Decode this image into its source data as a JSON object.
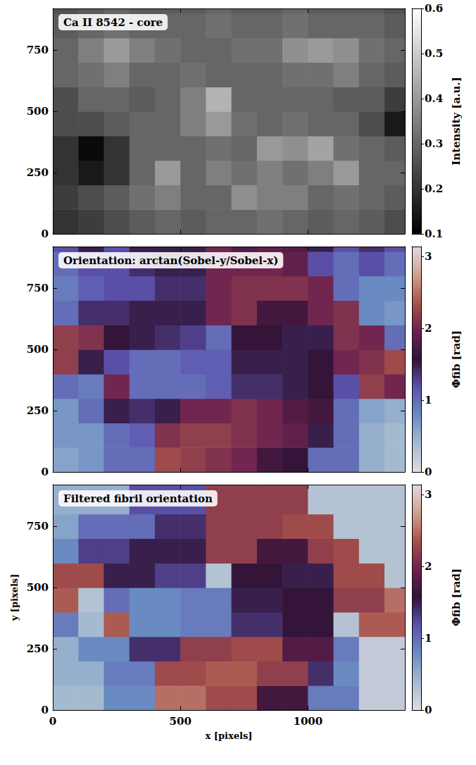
{
  "chart_data": [
    {
      "type": "heatmap",
      "title": "Ca II 8542 - core",
      "tick_labels": "y",
      "color": "gray",
      "xlim": [
        0,
        1380
      ],
      "ylim": [
        0,
        920
      ],
      "xticks": [
        0,
        500,
        1000
      ],
      "yticks": [
        0,
        250,
        500,
        750
      ],
      "x_edges": [
        0,
        100,
        200,
        300,
        400,
        500,
        600,
        700,
        800,
        900,
        1000,
        1100,
        1200,
        1300,
        1380
      ],
      "y_edges": [
        0,
        100,
        200,
        300,
        400,
        500,
        600,
        700,
        800,
        900,
        920
      ],
      "cells": [
        [
          0.2,
          0.22,
          0.25,
          0.28,
          0.3,
          0.28,
          0.3,
          0.3,
          0.32,
          0.3,
          0.28,
          0.3,
          0.28,
          0.25
        ],
        [
          0.22,
          0.25,
          0.28,
          0.32,
          0.35,
          0.3,
          0.3,
          0.38,
          0.35,
          0.35,
          0.3,
          0.32,
          0.3,
          0.28
        ],
        [
          0.2,
          0.15,
          0.2,
          0.3,
          0.4,
          0.3,
          0.35,
          0.32,
          0.35,
          0.32,
          0.35,
          0.4,
          0.3,
          0.3
        ],
        [
          0.2,
          0.12,
          0.2,
          0.3,
          0.3,
          0.3,
          0.32,
          0.3,
          0.4,
          0.38,
          0.42,
          0.32,
          0.3,
          0.28
        ],
        [
          0.25,
          0.25,
          0.28,
          0.3,
          0.3,
          0.35,
          0.4,
          0.32,
          0.3,
          0.32,
          0.3,
          0.3,
          0.25,
          0.15
        ],
        [
          0.25,
          0.3,
          0.3,
          0.28,
          0.3,
          0.35,
          0.45,
          0.3,
          0.3,
          0.3,
          0.3,
          0.28,
          0.28,
          0.22
        ],
        [
          0.3,
          0.32,
          0.35,
          0.3,
          0.3,
          0.32,
          0.3,
          0.3,
          0.3,
          0.32,
          0.32,
          0.35,
          0.3,
          0.28
        ],
        [
          0.3,
          0.35,
          0.4,
          0.35,
          0.32,
          0.3,
          0.3,
          0.32,
          0.32,
          0.38,
          0.4,
          0.38,
          0.32,
          0.3
        ],
        [
          0.28,
          0.3,
          0.32,
          0.3,
          0.3,
          0.3,
          0.32,
          0.3,
          0.3,
          0.32,
          0.3,
          0.3,
          0.3,
          0.28
        ],
        [
          0.26,
          0.28,
          0.3,
          0.28,
          0.28,
          0.28,
          0.3,
          0.28,
          0.28,
          0.3,
          0.28,
          0.28,
          0.28,
          0.26
        ]
      ],
      "colorbar": {
        "label": "Intensity [a.u.]",
        "range": [
          0.1,
          0.6
        ],
        "ticks": [
          0.1,
          0.2,
          0.3,
          0.4,
          0.5,
          0.6
        ]
      }
    },
    {
      "type": "heatmap",
      "title": "Orientation: arctan(Sobel-y/Sobel-x)",
      "tick_labels": "y",
      "color": "twilight",
      "xlim": [
        0,
        1380
      ],
      "ylim": [
        0,
        920
      ],
      "xticks": [
        0,
        500,
        1000
      ],
      "yticks": [
        0,
        250,
        500,
        750
      ],
      "x_edges": [
        0,
        100,
        200,
        300,
        400,
        500,
        600,
        700,
        800,
        900,
        1000,
        1100,
        1200,
        1300,
        1380
      ],
      "y_edges": [
        0,
        100,
        200,
        300,
        400,
        500,
        600,
        700,
        800,
        900,
        920
      ],
      "cells": [
        [
          0.6,
          0.7,
          1.0,
          1.0,
          2.3,
          2.2,
          2.1,
          2.0,
          1.7,
          1.6,
          1.0,
          1.0,
          0.5,
          0.4
        ],
        [
          0.7,
          0.7,
          1.0,
          1.1,
          2.1,
          2.2,
          2.2,
          2.1,
          2.0,
          1.9,
          1.5,
          1.0,
          0.5,
          0.4
        ],
        [
          0.7,
          1.0,
          1.5,
          1.4,
          1.5,
          2.0,
          2.0,
          2.1,
          2.0,
          1.8,
          1.7,
          1.0,
          0.6,
          0.5
        ],
        [
          1.0,
          0.9,
          2.0,
          1.0,
          1.0,
          1.0,
          1.1,
          1.4,
          1.4,
          1.5,
          1.6,
          1.2,
          2.2,
          2.0
        ],
        [
          2.2,
          1.5,
          1.2,
          1.0,
          1.0,
          1.1,
          1.1,
          1.5,
          1.5,
          1.5,
          1.6,
          2.0,
          2.1,
          2.3
        ],
        [
          2.2,
          2.1,
          1.6,
          1.5,
          1.4,
          1.3,
          1.0,
          1.6,
          1.6,
          1.5,
          1.5,
          2.1,
          2.0,
          1.0
        ],
        [
          1.0,
          1.4,
          1.4,
          1.5,
          1.5,
          1.5,
          2.0,
          2.1,
          1.7,
          1.7,
          2.0,
          2.1,
          0.8,
          0.7
        ],
        [
          0.9,
          1.1,
          1.2,
          1.2,
          1.4,
          1.4,
          2.0,
          2.1,
          2.1,
          2.1,
          2.0,
          1.0,
          0.8,
          0.8
        ],
        [
          1.0,
          1.2,
          1.2,
          1.4,
          1.5,
          1.5,
          2.0,
          2.0,
          2.0,
          1.9,
          1.2,
          1.0,
          1.2,
          1.0
        ],
        [
          1.2,
          1.5,
          1.2,
          1.5,
          1.5,
          1.5,
          2.0,
          1.8,
          1.9,
          1.8,
          1.5,
          1.2,
          1.4,
          1.2
        ]
      ],
      "colorbar": {
        "label": "Φfib [rad]",
        "range": [
          0,
          3.1416
        ],
        "ticks": [
          0,
          1,
          2,
          3
        ]
      }
    },
    {
      "type": "heatmap",
      "title": "Filtered fibril orientation",
      "xlabel": "x [pixels]",
      "ylabel": "y [pixels]",
      "color": "twilight",
      "xlim": [
        0,
        1380
      ],
      "ylim": [
        0,
        920
      ],
      "xticks": [
        0,
        500,
        1000
      ],
      "yticks": [
        0,
        250,
        500,
        750
      ],
      "x_edges": [
        0,
        100,
        200,
        300,
        400,
        500,
        600,
        700,
        800,
        900,
        1000,
        1100,
        1200,
        1300,
        1380
      ],
      "y_edges": [
        0,
        100,
        200,
        300,
        400,
        500,
        600,
        700,
        800,
        900,
        920
      ],
      "cells": [
        [
          0.4,
          0.4,
          0.8,
          0.8,
          2.5,
          2.5,
          2.3,
          2.3,
          1.7,
          1.7,
          0.9,
          0.9,
          0.2,
          0.2
        ],
        [
          0.5,
          0.5,
          0.9,
          0.9,
          2.3,
          2.3,
          2.4,
          2.4,
          2.2,
          2.2,
          1.4,
          0.8,
          0.2,
          0.2
        ],
        [
          0.5,
          0.8,
          0.8,
          1.4,
          1.4,
          2.2,
          2.2,
          2.3,
          2.3,
          1.8,
          1.8,
          0.9,
          0.2,
          0.2
        ],
        [
          0.9,
          0.4,
          2.4,
          0.8,
          0.8,
          0.9,
          0.9,
          1.4,
          1.4,
          1.6,
          1.6,
          0.3,
          2.4,
          2.4
        ],
        [
          2.4,
          0.3,
          1.0,
          0.8,
          0.8,
          0.9,
          0.9,
          1.5,
          1.5,
          1.6,
          1.6,
          2.2,
          2.2,
          2.5
        ],
        [
          2.3,
          2.3,
          1.5,
          1.5,
          1.3,
          1.3,
          0.3,
          1.6,
          1.6,
          1.5,
          1.5,
          2.3,
          2.3,
          0.3
        ],
        [
          0.8,
          1.3,
          1.3,
          1.5,
          1.5,
          1.5,
          2.2,
          2.2,
          1.7,
          1.7,
          2.2,
          2.3,
          0.3,
          0.3
        ],
        [
          0.6,
          1.0,
          1.0,
          1.0,
          1.4,
          1.4,
          2.2,
          2.2,
          2.2,
          2.3,
          2.3,
          0.3,
          0.3,
          0.3
        ],
        [
          0.5,
          0.5,
          0.5,
          1.2,
          1.2,
          1.2,
          2.2,
          2.2,
          2.2,
          2.2,
          0.3,
          0.3,
          0.3,
          0.3
        ],
        [
          0.5,
          0.5,
          0.5,
          1.2,
          1.2,
          1.2,
          2.2,
          2.2,
          2.2,
          2.2,
          0.3,
          0.3,
          0.3,
          0.3
        ]
      ],
      "colorbar": {
        "label": "Φfib [rad]",
        "range": [
          0,
          3.1416
        ],
        "ticks": [
          0,
          1,
          2,
          3
        ]
      }
    }
  ]
}
